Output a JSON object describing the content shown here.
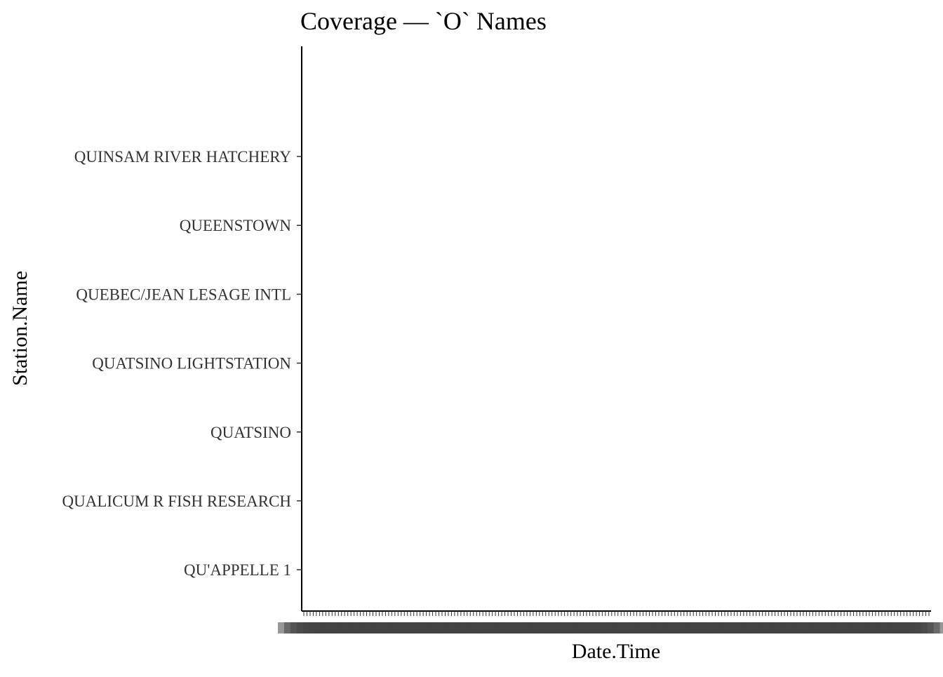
{
  "chart_data": {
    "type": "scatter",
    "title": "Coverage — `O` Names",
    "xlabel": "Date.Time",
    "ylabel": "Station.Name",
    "categories": [
      "QU'APPELLE 1",
      "QUALICUM R FISH RESEARCH",
      "QUATSINO",
      "QUATSINO LIGHTSTATION",
      "QUEBEC/JEAN LESAGE INTL",
      "QUEENSTOWN",
      "QUINSAM RIVER HATCHERY"
    ],
    "series": [],
    "x_tick_count": 200,
    "grid": false,
    "legend": "none"
  }
}
